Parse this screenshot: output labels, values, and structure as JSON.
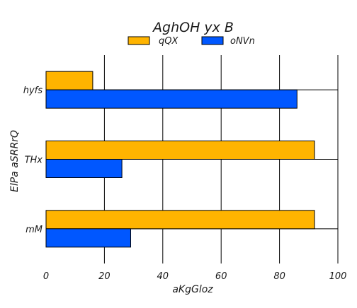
{
  "chart_data": {
    "type": "bar",
    "orientation": "horizontal",
    "title": "AghOH yx B",
    "xlabel": "aKgGloz",
    "ylabel": "ElPa aSRRrQ",
    "categories": [
      "hyfs",
      "THx",
      "mM"
    ],
    "series": [
      {
        "name": "qQX",
        "color": "#ffb400",
        "values": [
          16,
          92,
          92
        ]
      },
      {
        "name": "oNVn",
        "color": "#0057ff",
        "values": [
          86,
          26,
          29
        ]
      }
    ],
    "xlim": [
      0,
      100
    ],
    "xticks": [
      "0",
      "20",
      "40",
      "60",
      "80",
      "100"
    ],
    "grid": "x",
    "legend": "top-center"
  }
}
